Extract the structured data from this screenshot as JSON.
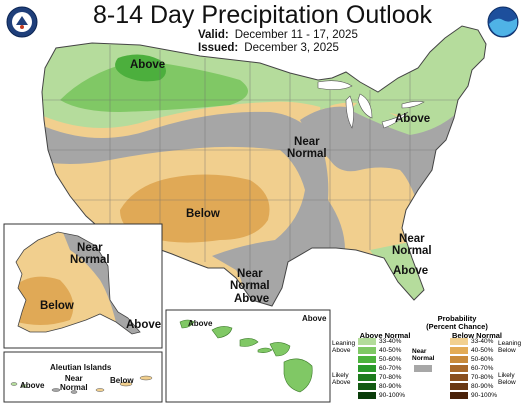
{
  "header": {
    "title": "8-14 Day Precipitation Outlook",
    "valid_label": "Valid:",
    "valid_dates": "December 11 - 17, 2025",
    "issued_label": "Issued:",
    "issued_date": "December 3, 2025"
  },
  "logos": {
    "left": "doc-seal-icon",
    "right": "noaa-logo-icon"
  },
  "map_labels": {
    "above_nw": "Above",
    "above_ne": "Above",
    "near_normal_central": [
      "Near",
      "Normal"
    ],
    "below_sw": "Below",
    "near_normal_tx": [
      "Near",
      "Normal"
    ],
    "above_tx": "Above",
    "near_normal_se": [
      "Near",
      "Normal"
    ],
    "above_fl": "Above"
  },
  "alaska": {
    "near_normal": [
      "Near",
      "Normal"
    ],
    "below": "Below",
    "above": "Above",
    "aleutian_title": "Aleutian Islands",
    "aleutian_above": "Above",
    "aleutian_near": [
      "Near",
      "Normal"
    ],
    "aleutian_below": "Below"
  },
  "hawaii": {
    "above_left": "Above",
    "above_right": "Above"
  },
  "legend": {
    "title": "Probability",
    "subtitle": "(Percent Chance)",
    "above_header": "Above Normal",
    "below_header": "Below Normal",
    "near_label": [
      "Near",
      "Normal"
    ],
    "leaning_above": [
      "Leaning",
      "Above"
    ],
    "likely_above": [
      "Likely",
      "Above"
    ],
    "leaning_below": [
      "Leaning",
      "Below"
    ],
    "likely_below": [
      "Likely",
      "Below"
    ],
    "ranges": [
      "33-40%",
      "40-50%",
      "50-60%",
      "60-70%",
      "70-80%",
      "80-90%",
      "90-100%"
    ],
    "above_colors": [
      "#b3dc9a",
      "#7fc864",
      "#4db33d",
      "#2a9a2a",
      "#1d7a1d",
      "#135a13",
      "#0a3c0a"
    ],
    "below_colors": [
      "#f2d08f",
      "#e3ab55",
      "#c98a3a",
      "#a9692a",
      "#8a4f1e",
      "#6a3814",
      "#4a220a"
    ],
    "near_color": "#a7a7a7"
  }
}
